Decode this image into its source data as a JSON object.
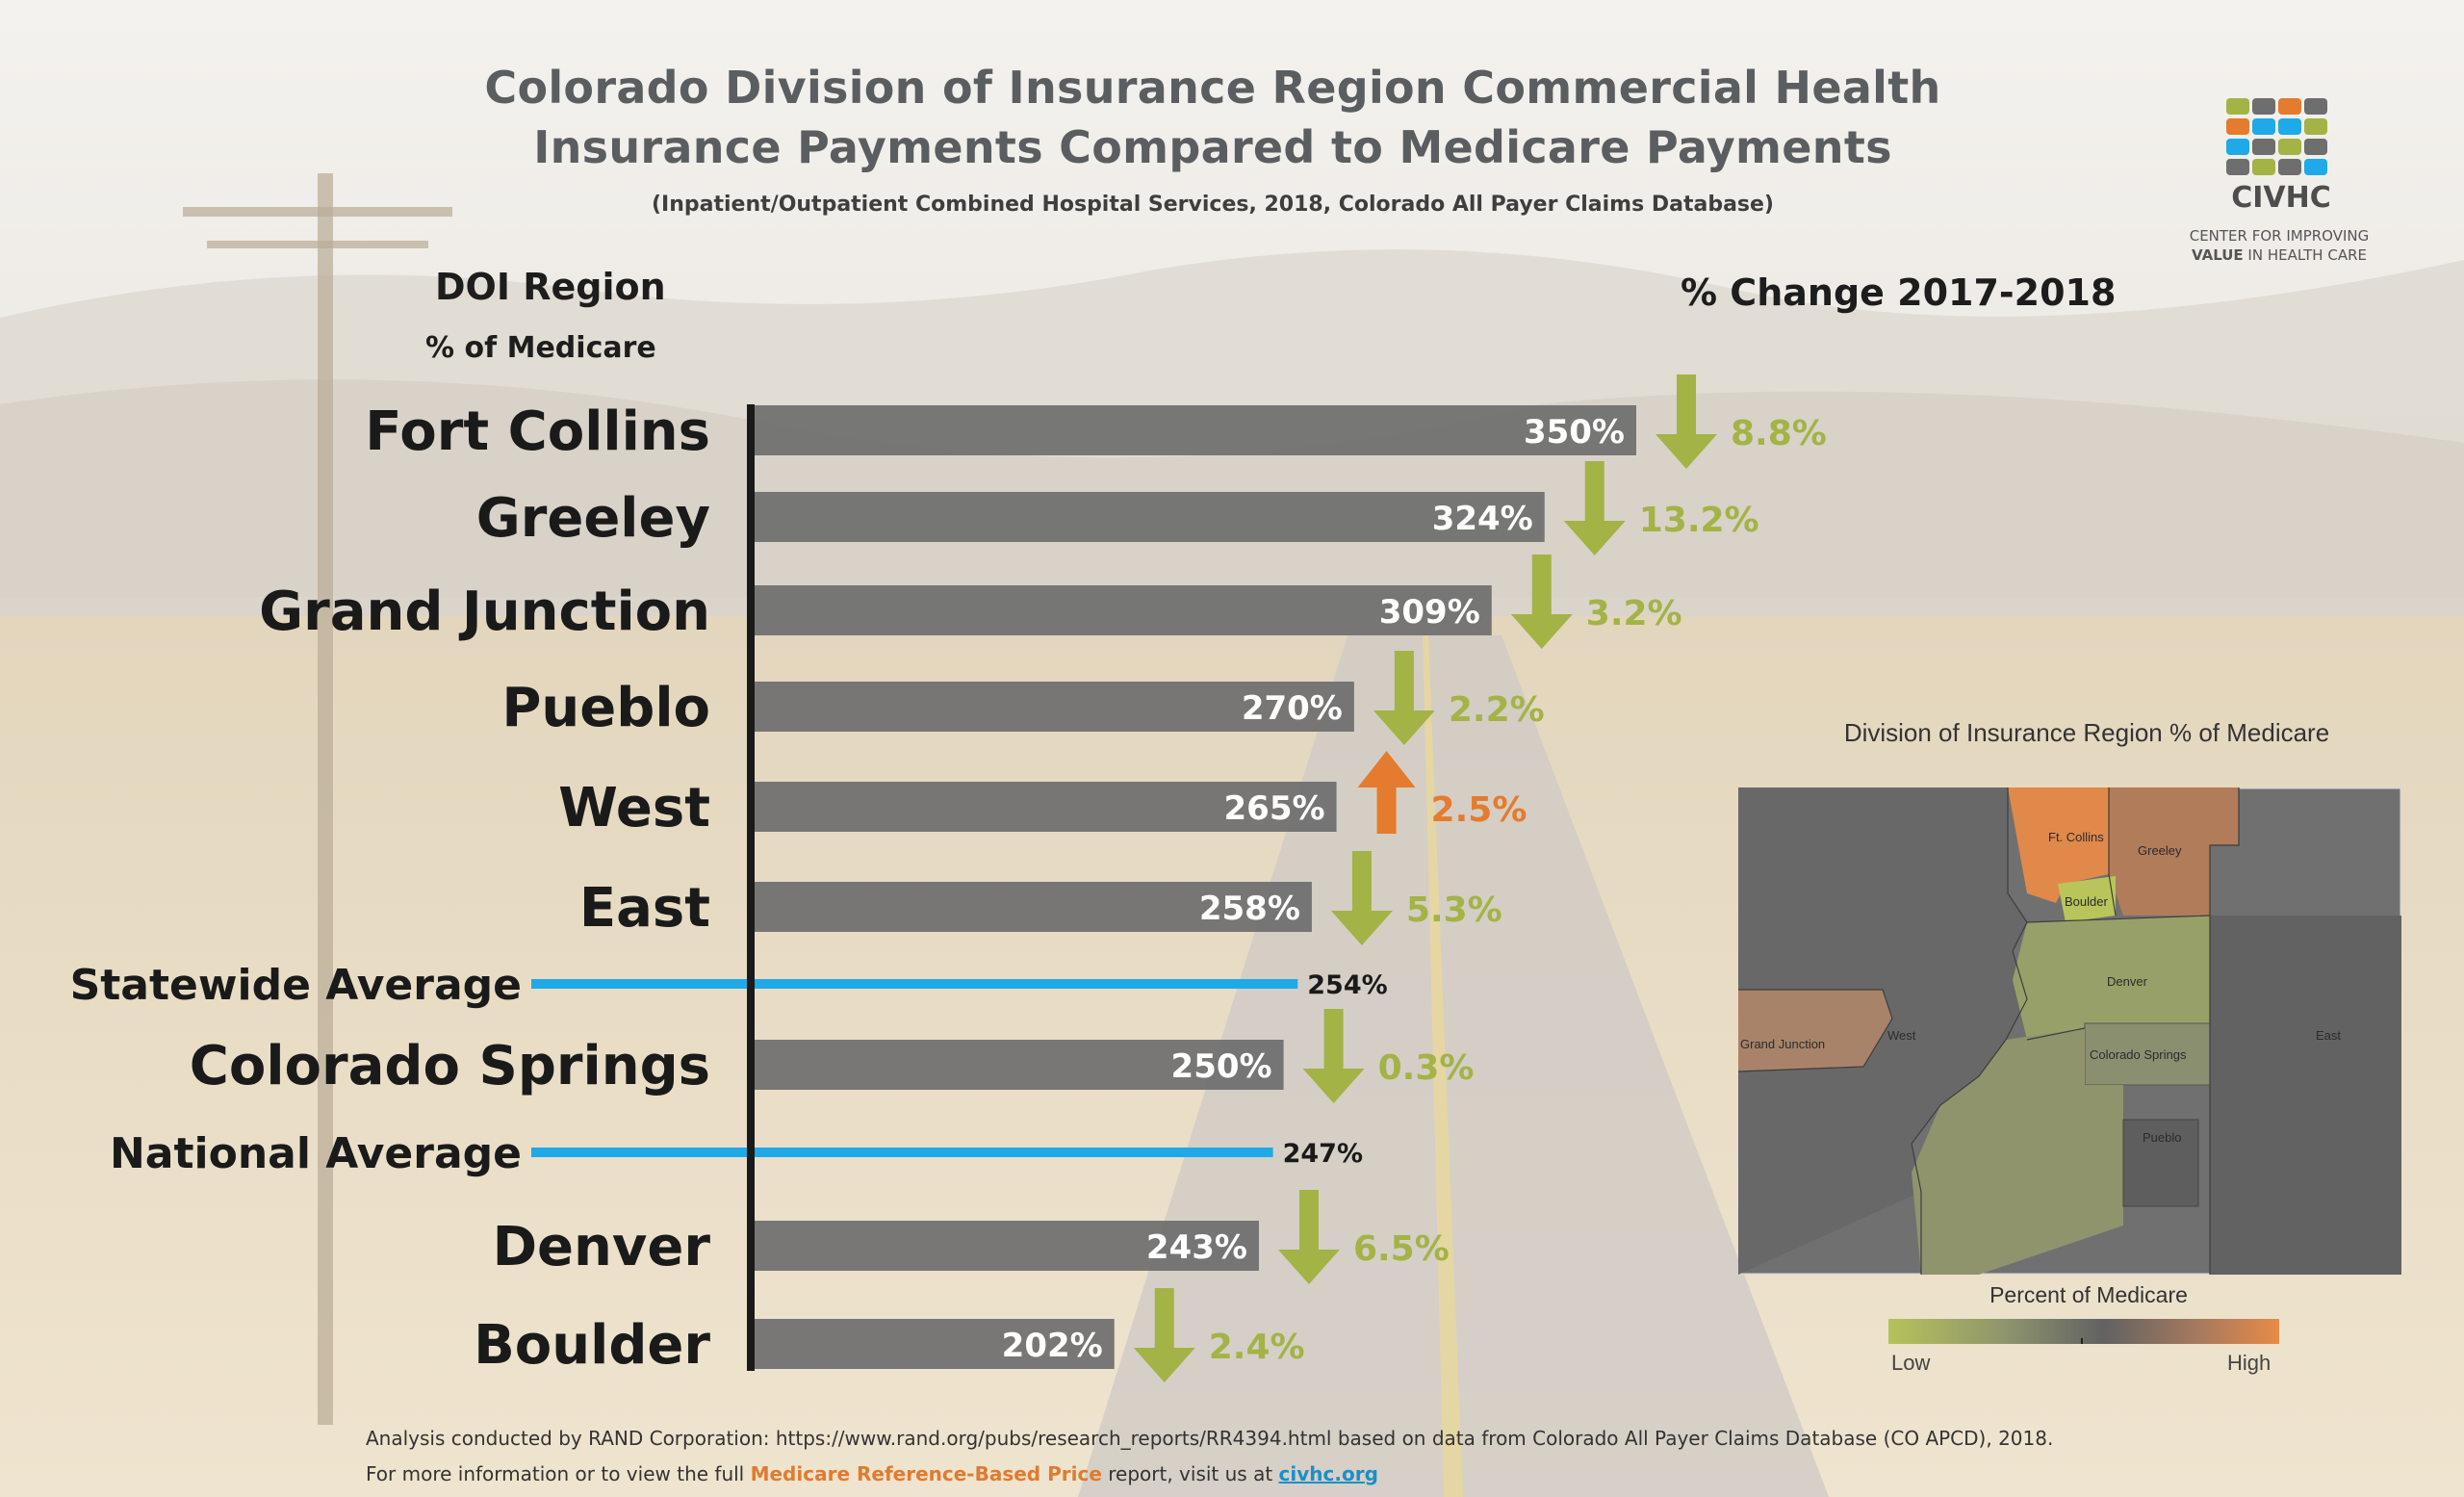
{
  "title_line1": "Colorado Division of Insurance Region Commercial Health",
  "title_line2": "Insurance Payments Compared to Medicare Payments",
  "subtitle": "(Inpatient/Outpatient Combined Hospital Services, 2018, Colorado All Payer Claims Database)",
  "header_region": "DOI  Region",
  "header_pct": "% of Medicare",
  "header_change": "% Change 2017-2018",
  "logo": {
    "name": "CIVHC",
    "line1": "CENTER FOR IMPROVING",
    "line2_bold": "VALUE",
    "line2_rest": " IN HEALTH CARE"
  },
  "colors": {
    "bar": "#6e6e6e",
    "average_line": "#1fa9e8",
    "down": "#a3b346",
    "up": "#e57b2e",
    "axis": "#1a1a1a"
  },
  "chart_data": {
    "type": "bar",
    "orientation": "horizontal",
    "categories": [
      "Fort Collins",
      "Greeley",
      "Grand Junction",
      "Pueblo",
      "West",
      "East",
      "Colorado Springs",
      "Denver",
      "Boulder"
    ],
    "values": [
      350,
      324,
      309,
      270,
      265,
      258,
      250,
      243,
      202
    ],
    "value_labels": [
      "350%",
      "324%",
      "309%",
      "270%",
      "265%",
      "258%",
      "250%",
      "243%",
      "202%"
    ],
    "change": [
      {
        "direction": "down",
        "label": "8.8%"
      },
      {
        "direction": "down",
        "label": "13.2%"
      },
      {
        "direction": "down",
        "label": "3.2%"
      },
      {
        "direction": "down",
        "label": "2.2%"
      },
      {
        "direction": "up",
        "label": "2.5%"
      },
      {
        "direction": "down",
        "label": "5.3%"
      },
      {
        "direction": "down",
        "label": "0.3%"
      },
      {
        "direction": "down",
        "label": "6.5%"
      },
      {
        "direction": "down",
        "label": "2.4%"
      }
    ],
    "reference_lines": [
      {
        "name": "Statewide Average",
        "value": 254,
        "label": "254%"
      },
      {
        "name": "National Average",
        "value": 247,
        "label": "247%"
      }
    ],
    "xlim": [
      100,
      350
    ]
  },
  "map": {
    "title": "Division of Insurance Region % of Medicare",
    "legend_title": "Percent of Medicare",
    "legend_low": "Low",
    "legend_high": "High",
    "regions": [
      "Ft. Collins",
      "Greeley",
      "Boulder",
      "Denver",
      "Grand Junction",
      "West",
      "Colorado Springs",
      "East",
      "Pueblo"
    ]
  },
  "footer": {
    "line1": "Analysis conducted by RAND Corporation: https://www.rand.org/pubs/research_reports/RR4394.html based on data from Colorado All Payer Claims Database (CO APCD), 2018.",
    "line2_a": "For more information or to view the full ",
    "line2_b": "Medicare Reference-Based Price",
    "line2_c": " report, visit us at ",
    "line2_d": "civhc.org"
  }
}
